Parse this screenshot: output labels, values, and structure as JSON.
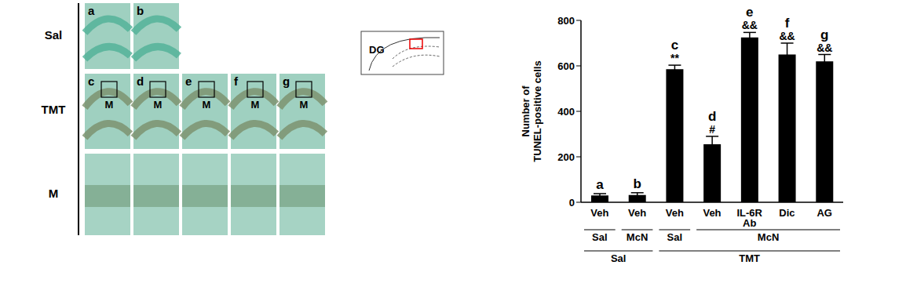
{
  "micrographs": {
    "rows": [
      {
        "label": "Sal",
        "panels": [
          "a",
          "b"
        ]
      },
      {
        "label": "TMT",
        "panels": [
          "c",
          "d",
          "e",
          "f",
          "g"
        ],
        "box_label": "M"
      },
      {
        "label": "M"
      }
    ],
    "region_label": "DG"
  },
  "chart_data": {
    "type": "bar",
    "y_label": "Number of TUNEL-positive cells",
    "categories": [
      "Veh",
      "Veh",
      "Veh",
      "Veh",
      "IL-6R Ab",
      "Dic",
      "AG"
    ],
    "values": [
      30,
      32,
      585,
      255,
      725,
      650,
      620
    ],
    "errors": [
      8,
      10,
      18,
      35,
      22,
      50,
      30
    ],
    "bar_labels": [
      "a",
      "b",
      "c",
      "d",
      "e",
      "f",
      "g"
    ],
    "annotations": [
      null,
      null,
      "**",
      "#",
      "&&",
      "&&",
      "&&"
    ],
    "x_groups": [
      [
        {
          "label": "Sal",
          "span": 1
        },
        {
          "label": "McN",
          "span": 1
        },
        {
          "label": "Sal",
          "span": 1
        },
        {
          "label": "McN",
          "span": 4
        }
      ],
      [
        {
          "label": "Sal",
          "span": 2
        },
        {
          "label": "TMT",
          "span": 5
        }
      ]
    ],
    "color": "#000000",
    "ylim": [
      0,
      800
    ],
    "yticks": [
      0,
      200,
      400,
      600,
      800
    ],
    "grid": false
  }
}
